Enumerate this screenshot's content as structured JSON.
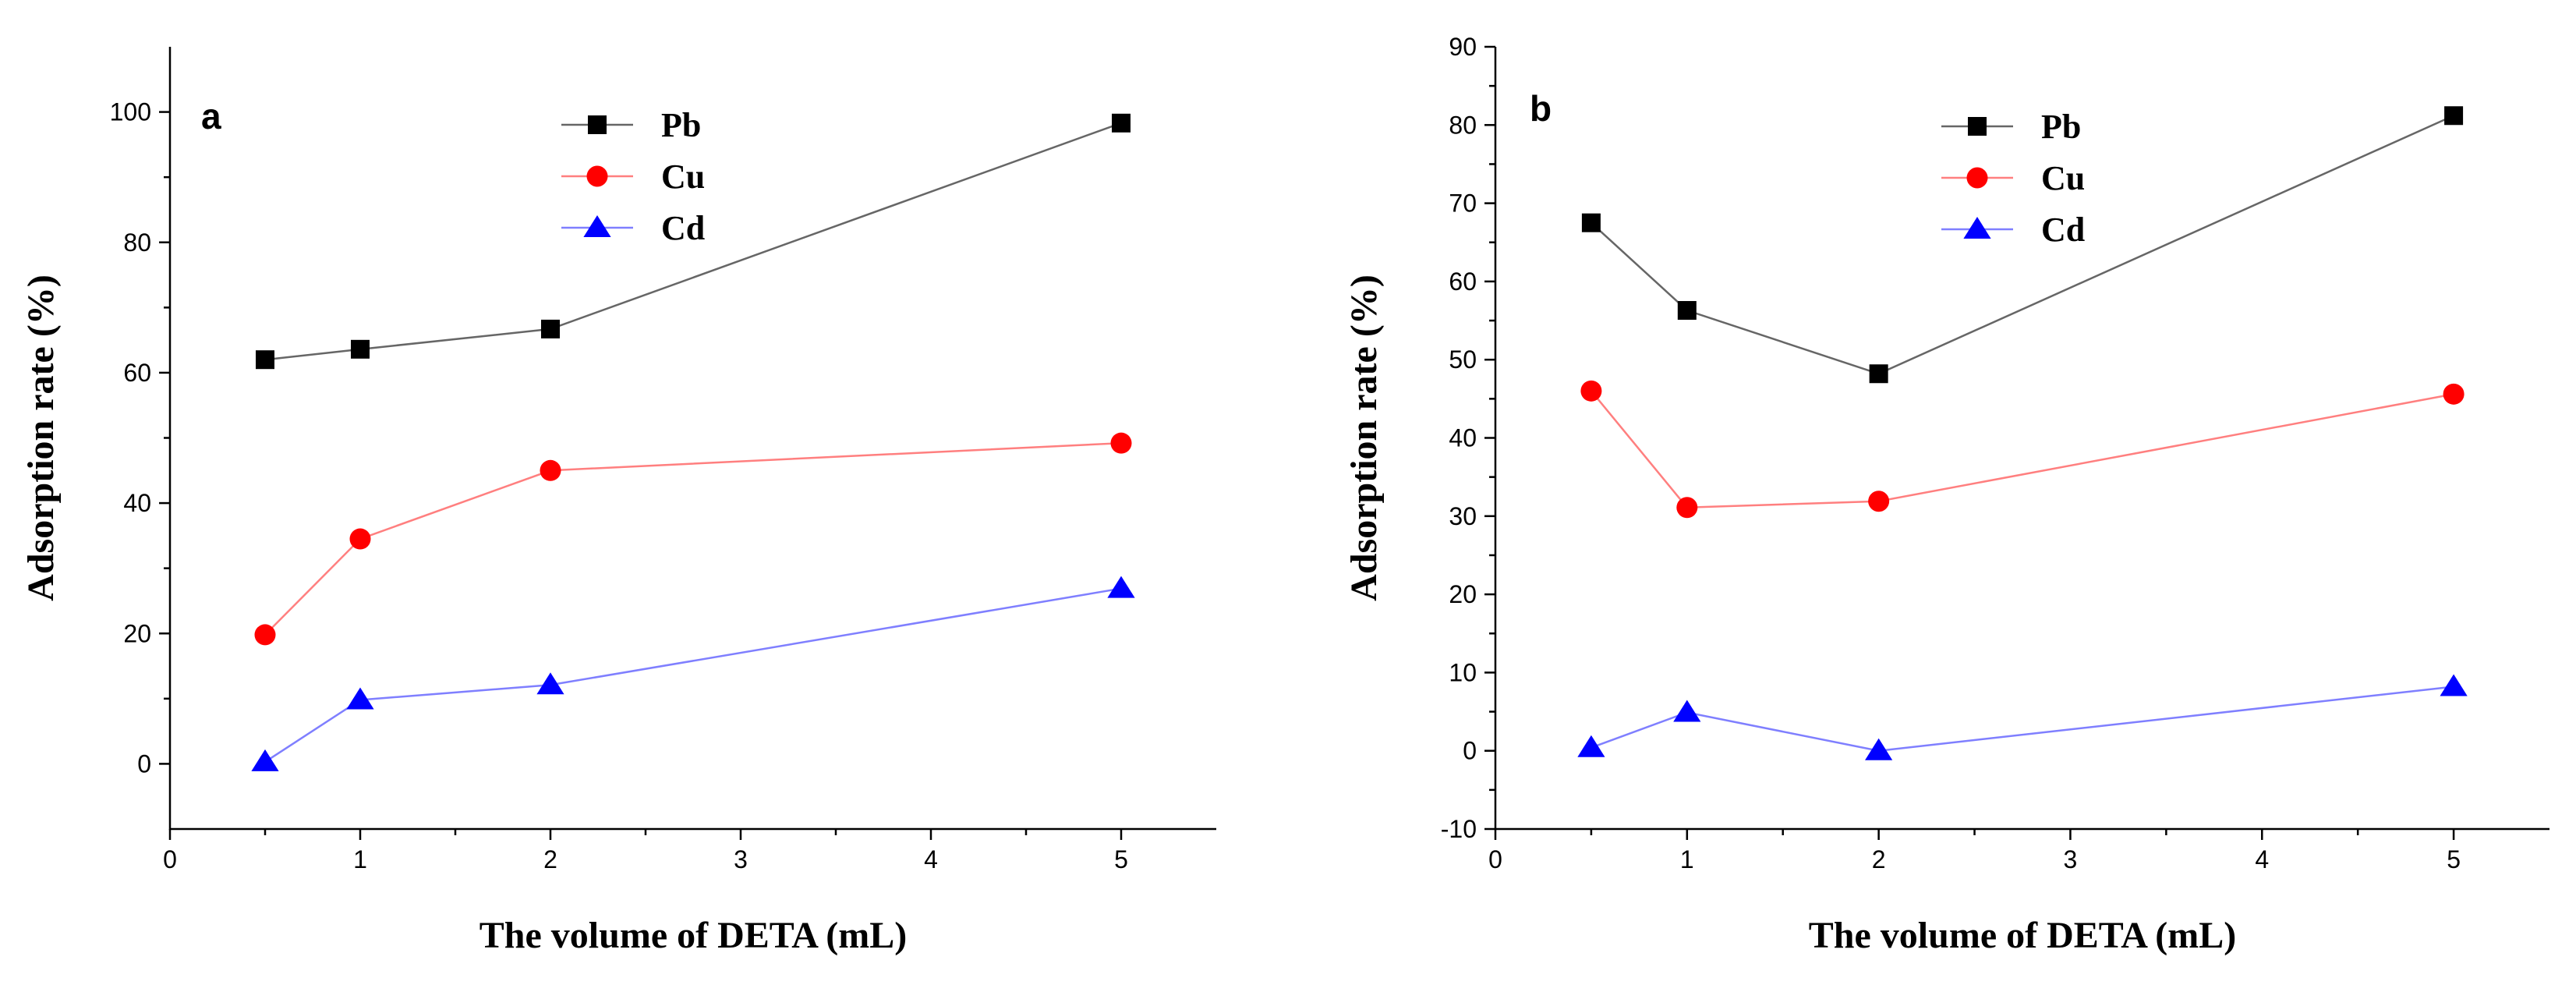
{
  "chart_data": [
    {
      "type": "line",
      "panel_label": "a",
      "xlabel": "The volume of DETA (mL)",
      "ylabel": "Adsorption rate (%)",
      "xlim": [
        0,
        5.5
      ],
      "ylim": [
        -10,
        110
      ],
      "xticks": [
        0,
        1,
        2,
        3,
        4,
        5
      ],
      "yticks": [
        0,
        20,
        40,
        60,
        80,
        100
      ],
      "x": [
        0.5,
        1,
        2,
        5
      ],
      "legend_position": "top-center",
      "series": [
        {
          "name": "Pb",
          "marker": "square",
          "color": "#000000",
          "line_color": "#666666",
          "values": [
            62.0,
            63.6,
            66.7,
            98.3
          ]
        },
        {
          "name": "Cu",
          "marker": "circle",
          "color": "#ff0000",
          "line_color": "#ff7f7f",
          "values": [
            19.8,
            34.5,
            45.0,
            49.2
          ]
        },
        {
          "name": "Cd",
          "marker": "triangle",
          "color": "#0000ff",
          "line_color": "#7f7fff",
          "values": [
            0.3,
            9.8,
            12.1,
            26.9
          ]
        }
      ]
    },
    {
      "type": "line",
      "panel_label": "b",
      "xlabel": "The volume of DETA (mL)",
      "ylabel": "Adsorption rate (%)",
      "xlim": [
        0,
        5.5
      ],
      "ylim": [
        -10,
        90
      ],
      "xticks": [
        0,
        1,
        2,
        3,
        4,
        5
      ],
      "yticks": [
        -10,
        0,
        10,
        20,
        30,
        40,
        50,
        60,
        70,
        80,
        90
      ],
      "x": [
        0.5,
        1,
        2,
        5
      ],
      "legend_position": "top-center",
      "series": [
        {
          "name": "Pb",
          "marker": "square",
          "color": "#000000",
          "line_color": "#666666",
          "values": [
            67.5,
            56.3,
            48.2,
            81.2
          ]
        },
        {
          "name": "Cu",
          "marker": "circle",
          "color": "#ff0000",
          "line_color": "#ff7f7f",
          "values": [
            46.0,
            31.1,
            31.9,
            45.6
          ]
        },
        {
          "name": "Cd",
          "marker": "triangle",
          "color": "#0000ff",
          "line_color": "#7f7fff",
          "values": [
            0.4,
            4.9,
            0.0,
            8.2
          ]
        }
      ]
    }
  ]
}
